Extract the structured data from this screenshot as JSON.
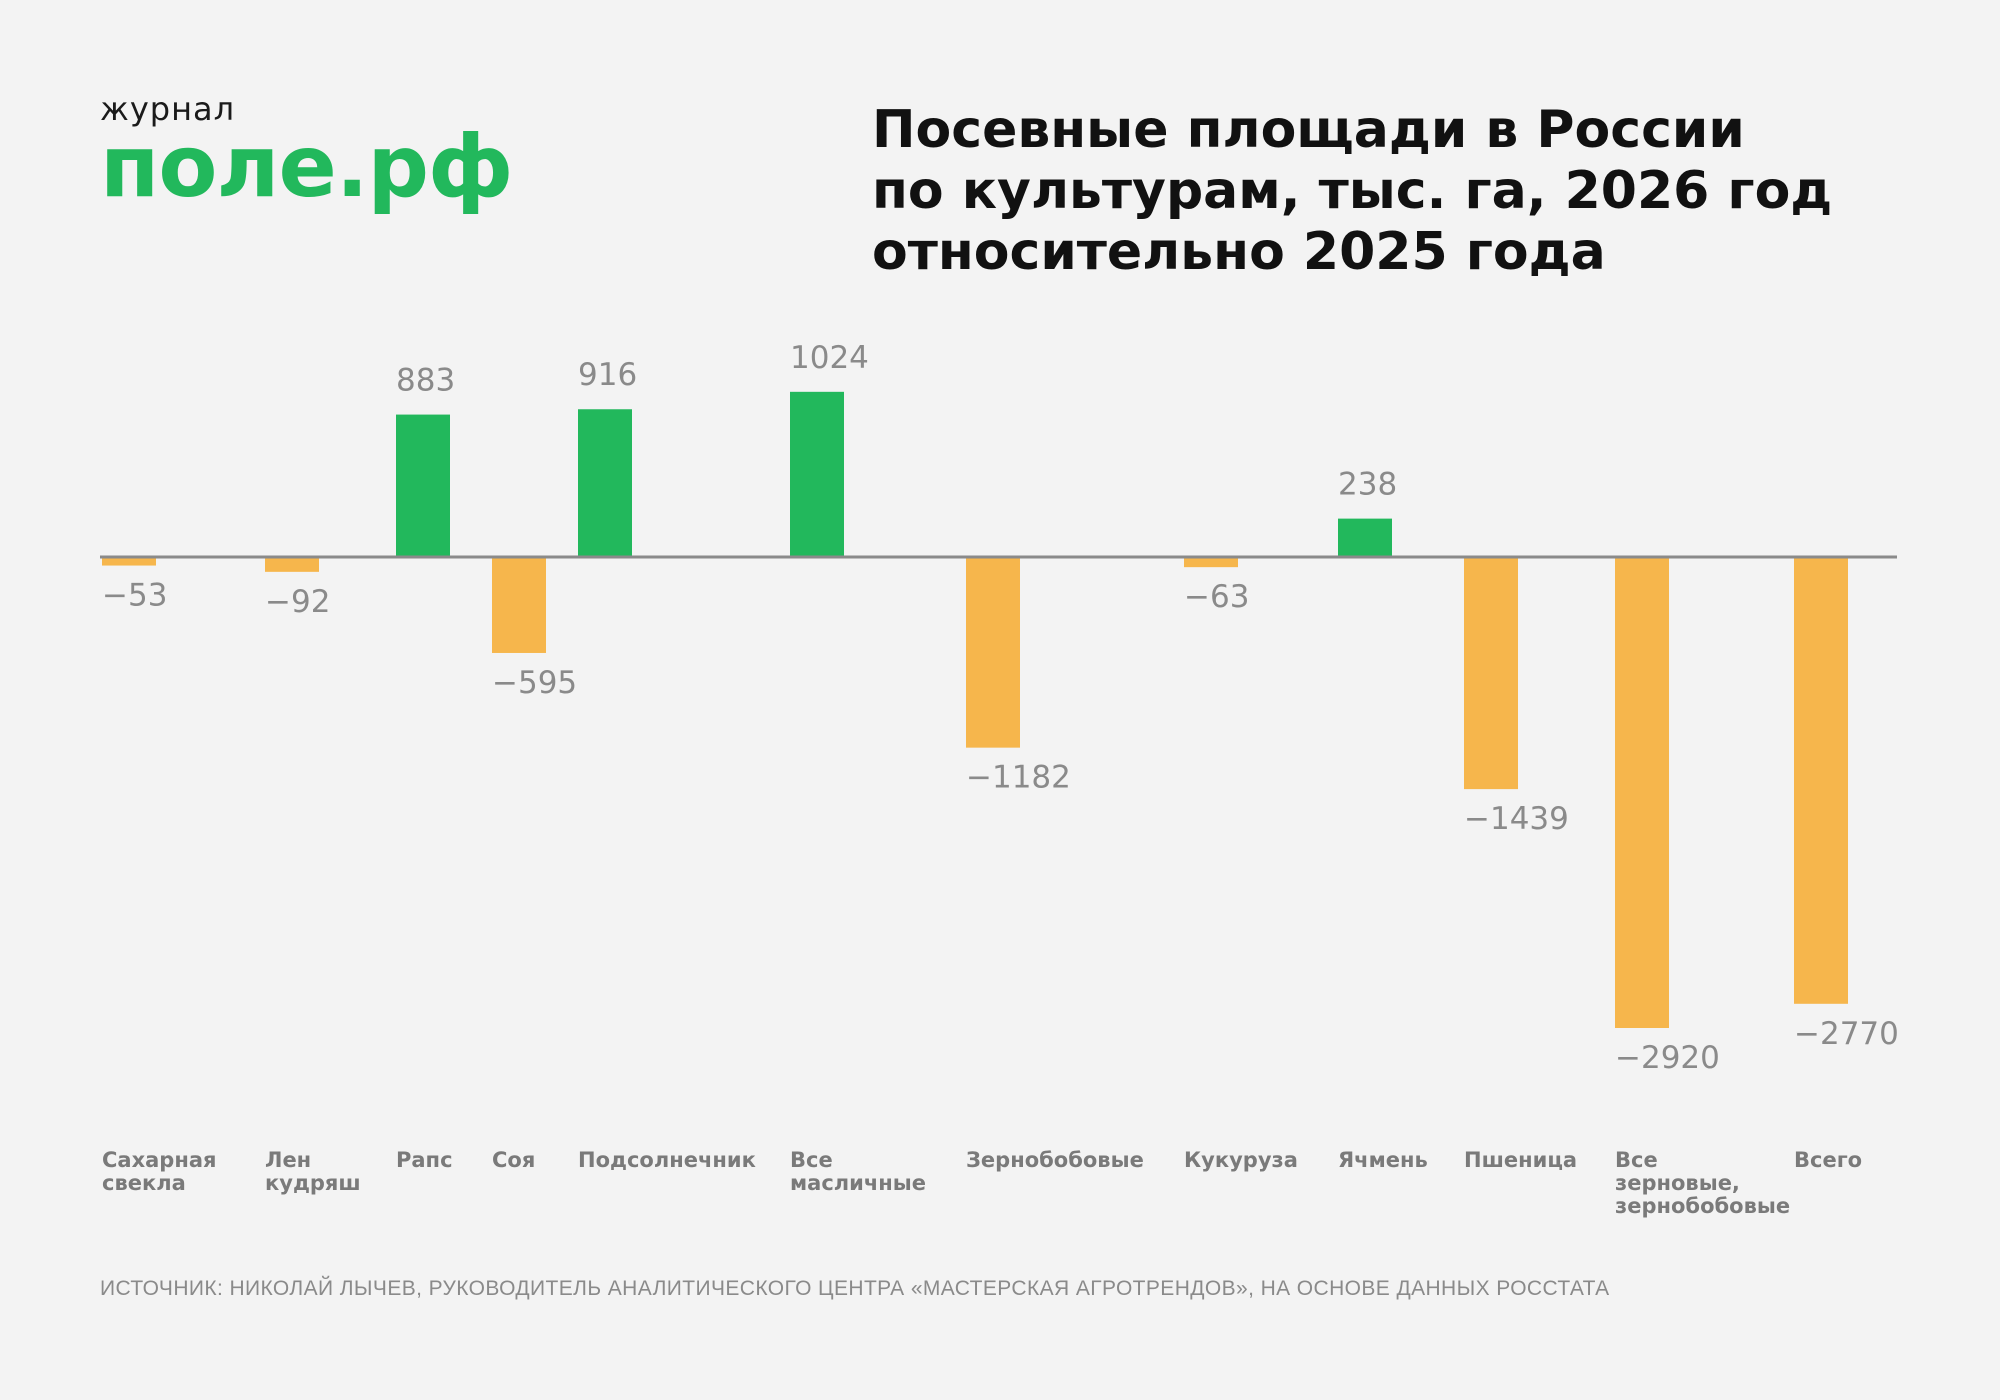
{
  "logo": {
    "small": "журнал",
    "big": "поле.рф"
  },
  "title_lines": [
    "Посевные площади в России",
    "по культурам, тыс. га, 2026 год",
    "относительно 2025 года"
  ],
  "source": "ИСТОЧНИК: НИКОЛАЙ ЛЫЧЕВ, РУКОВОДИТЕЛЬ АНАЛИТИЧЕСКОГО ЦЕНТРА «МАСТЕРСКАЯ АГРОТРЕНДОВ», НА ОСНОВЕ ДАННЫХ РОССТАТА",
  "colors": {
    "positive": "#22b85c",
    "negative": "#f6b64c",
    "baseline": "#8a8a8a",
    "value_label": "#8a8a8a",
    "category_label": "#7a7a7a",
    "brand": "#22b85c"
  },
  "chart_data": {
    "type": "bar",
    "title": "Посевные площади в России по культурам, тыс. га, 2026 год относительно 2025 года",
    "xlabel": "",
    "ylabel": "",
    "ylim": [
      -2920,
      1024
    ],
    "grid": false,
    "legend": "none",
    "categories": [
      [
        "Сахарная",
        "свекла"
      ],
      [
        "Лен",
        "кудряш"
      ],
      [
        "Рапс"
      ],
      [
        "Соя"
      ],
      [
        "Подсолнечник"
      ],
      [
        "Все",
        "масличные"
      ],
      [
        "Зернобобовые"
      ],
      [
        "Кукуруза"
      ],
      [
        "Ячмень"
      ],
      [
        "Пшеница"
      ],
      [
        "Все",
        "зерновые,",
        "зернобобовые"
      ],
      [
        "Всего"
      ]
    ],
    "values": [
      -53,
      -92,
      883,
      -595,
      916,
      1024,
      -1182,
      -63,
      238,
      -1439,
      -2920,
      -2770
    ],
    "value_labels": [
      "−53",
      "−92",
      "883",
      "−595",
      "916",
      "1024",
      "−1182",
      "−63",
      "238",
      "−1439",
      "−2920",
      "−2770"
    ]
  }
}
